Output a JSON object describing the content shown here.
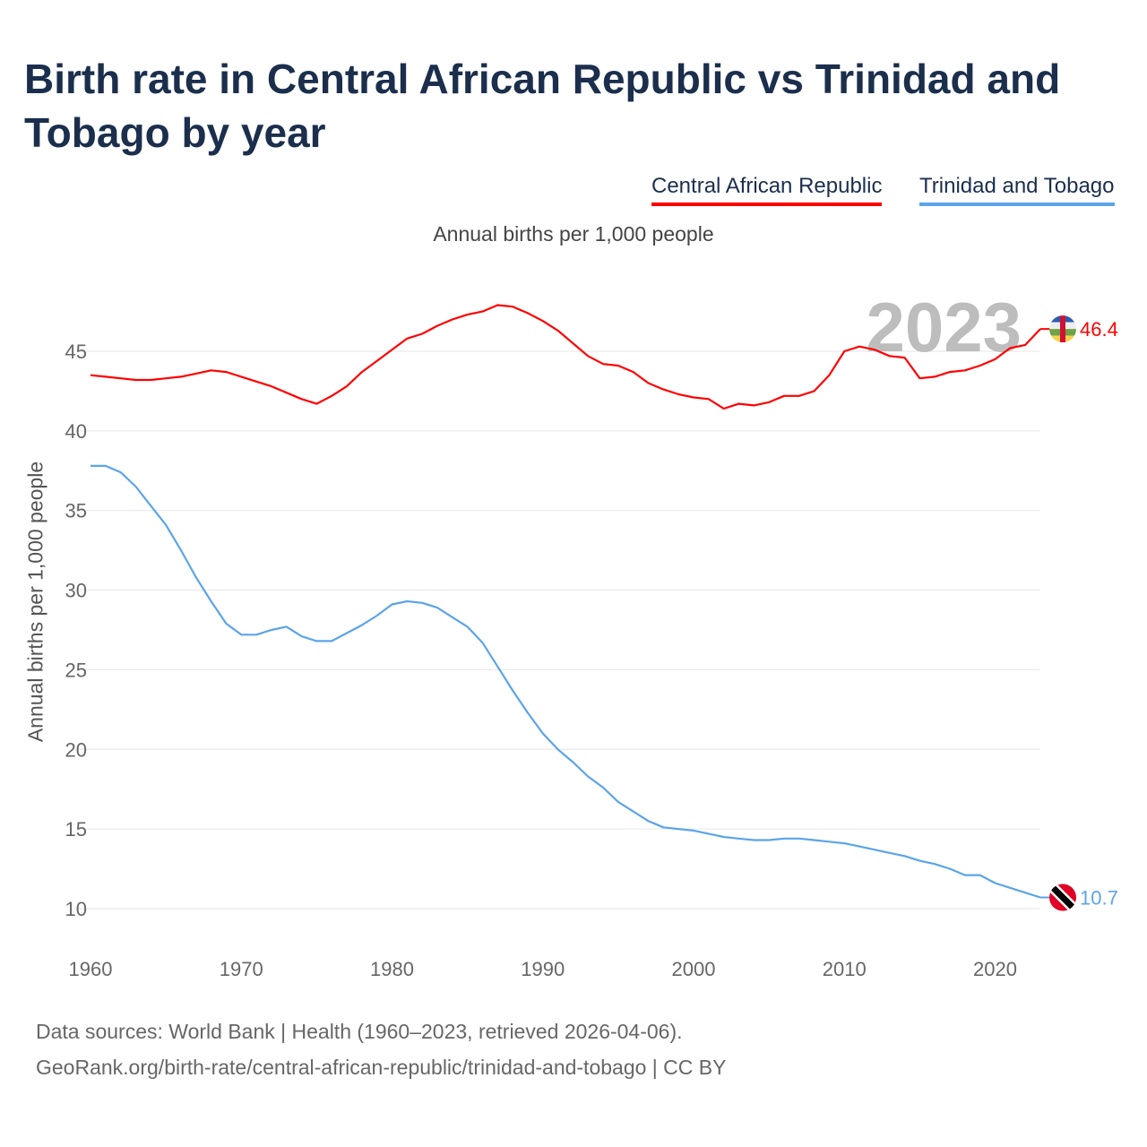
{
  "title": "Birth rate in Central African Republic vs Trinidad and Tobago by year",
  "subtitle": "Annual births per 1,000 people",
  "footer": {
    "line1": "Data sources: World Bank | Health (1960–2023, retrieved 2026-04-06).",
    "line2": "GeoRank.org/birth-rate/central-african-republic/trinidad-and-tobago | CC BY"
  },
  "chart_data": {
    "type": "line",
    "title": "Birth rate in Central African Republic vs Trinidad and Tobago by year",
    "ylabel": "Annual births per 1,000 people",
    "xlabel": "",
    "ylim": [
      7.5,
      48
    ],
    "xlim": [
      1960,
      2023
    ],
    "yticks": [
      10,
      15,
      20,
      25,
      30,
      35,
      40,
      45
    ],
    "xticks": [
      1960,
      1970,
      1980,
      1990,
      2000,
      2010,
      2020
    ],
    "year_label": "2023",
    "x": [
      1960,
      1961,
      1962,
      1963,
      1964,
      1965,
      1966,
      1967,
      1968,
      1969,
      1970,
      1971,
      1972,
      1973,
      1974,
      1975,
      1976,
      1977,
      1978,
      1979,
      1980,
      1981,
      1982,
      1983,
      1984,
      1985,
      1986,
      1987,
      1988,
      1989,
      1990,
      1991,
      1992,
      1993,
      1994,
      1995,
      1996,
      1997,
      1998,
      1999,
      2000,
      2001,
      2002,
      2003,
      2004,
      2005,
      2006,
      2007,
      2008,
      2009,
      2010,
      2011,
      2012,
      2013,
      2014,
      2015,
      2016,
      2017,
      2018,
      2019,
      2020,
      2021,
      2022,
      2023
    ],
    "series": [
      {
        "name": "Central African Republic",
        "color": "#ff0000",
        "end_label": "46.4",
        "values": [
          43.5,
          43.4,
          43.3,
          43.2,
          43.2,
          43.3,
          43.4,
          43.6,
          43.8,
          43.7,
          43.4,
          43.1,
          42.8,
          42.4,
          42.0,
          41.7,
          42.2,
          42.8,
          43.7,
          44.4,
          45.1,
          45.8,
          46.1,
          46.6,
          47.0,
          47.3,
          47.5,
          47.9,
          47.8,
          47.4,
          46.9,
          46.3,
          45.5,
          44.7,
          44.2,
          44.1,
          43.7,
          43.0,
          42.6,
          42.3,
          42.1,
          42.0,
          41.4,
          41.7,
          41.6,
          41.8,
          42.2,
          42.2,
          42.5,
          43.5,
          45.0,
          45.3,
          45.1,
          44.7,
          44.6,
          43.3,
          43.4,
          43.7,
          43.8,
          44.1,
          44.5,
          45.2,
          45.4,
          46.4
        ]
      },
      {
        "name": "Trinidad and Tobago",
        "color": "#5ba4ea",
        "end_label": "10.7",
        "values": [
          37.8,
          37.8,
          37.4,
          36.5,
          35.3,
          34.1,
          32.5,
          30.8,
          29.3,
          27.9,
          27.2,
          27.2,
          27.5,
          27.7,
          27.1,
          26.8,
          26.8,
          27.3,
          27.8,
          28.4,
          29.1,
          29.3,
          29.2,
          28.9,
          28.3,
          27.7,
          26.7,
          25.2,
          23.7,
          22.3,
          21.0,
          20.0,
          19.2,
          18.3,
          17.6,
          16.7,
          16.1,
          15.5,
          15.1,
          15.0,
          14.9,
          14.7,
          14.5,
          14.4,
          14.3,
          14.3,
          14.4,
          14.4,
          14.3,
          14.2,
          14.1,
          13.9,
          13.7,
          13.5,
          13.3,
          13.0,
          12.8,
          12.5,
          12.1,
          12.1,
          11.6,
          11.3,
          11.0,
          10.7
        ]
      }
    ]
  }
}
